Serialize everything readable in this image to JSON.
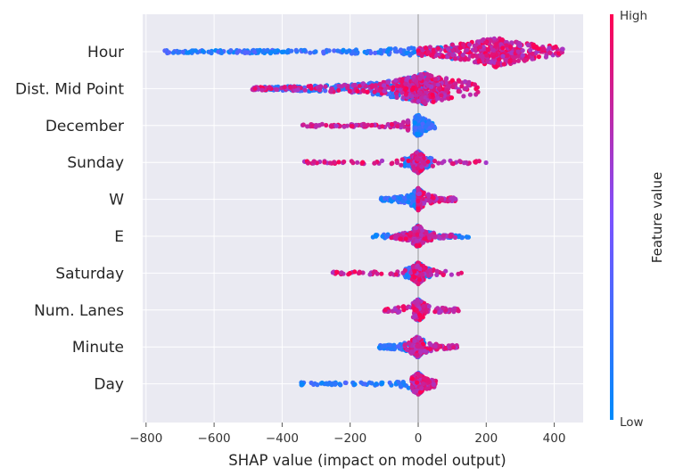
{
  "chart_data": {
    "type": "scatter",
    "subtype": "shap-beeswarm",
    "xlabel": "SHAP value (impact on model output)",
    "xlim": [
      -810,
      485
    ],
    "xticks": [
      -800,
      -600,
      -400,
      -200,
      0,
      200,
      400
    ],
    "xtick_labels": [
      "−800",
      "−600",
      "−400",
      "−200",
      "0",
      "200",
      "400"
    ],
    "grid": true,
    "colorbar": {
      "title": "Feature value",
      "high_label": "High",
      "low_label": "Low",
      "low_color": "#008bfb",
      "mid_color": "#7c52ff",
      "high_color": "#ff0052"
    },
    "features": [
      {
        "name": "Hour",
        "min": -755,
        "max": 425,
        "low_range": [
          -755,
          100
        ],
        "high_range": [
          0,
          425
        ],
        "dense_center": 230
      },
      {
        "name": "Dist. Mid Point",
        "min": -490,
        "max": 425,
        "low_range": [
          -460,
          20
        ],
        "high_range": [
          -490,
          180
        ],
        "dense_center": 20
      },
      {
        "name": "December",
        "min": -340,
        "max": 50,
        "low_range": [
          -10,
          50
        ],
        "high_range": [
          -340,
          -30
        ],
        "dense_center": 0
      },
      {
        "name": "Sunday",
        "min": -340,
        "max": 205,
        "low_range": [
          -40,
          40
        ],
        "high_range": [
          -340,
          205
        ],
        "dense_center": 0
      },
      {
        "name": "W",
        "min": -110,
        "max": 110,
        "low_range": [
          -110,
          10
        ],
        "high_range": [
          0,
          110
        ],
        "dense_center": 0
      },
      {
        "name": "E",
        "min": -140,
        "max": 150,
        "low_range": [
          -140,
          150
        ],
        "high_range": [
          -80,
          110
        ],
        "dense_center": 0
      },
      {
        "name": "Saturday",
        "min": -255,
        "max": 130,
        "low_range": [
          -40,
          40
        ],
        "high_range": [
          -255,
          130
        ],
        "dense_center": 0
      },
      {
        "name": "Num. Lanes",
        "min": -100,
        "max": 120,
        "low_range": [
          -10,
          10
        ],
        "high_range": [
          -100,
          120
        ],
        "dense_center": 0
      },
      {
        "name": "Minute",
        "min": -115,
        "max": 120,
        "low_range": [
          -115,
          30
        ],
        "high_range": [
          -40,
          120
        ],
        "dense_center": 0
      },
      {
        "name": "Day",
        "min": -345,
        "max": 55,
        "low_range": [
          -345,
          10
        ],
        "high_range": [
          -20,
          55
        ],
        "dense_center": 0
      }
    ]
  }
}
